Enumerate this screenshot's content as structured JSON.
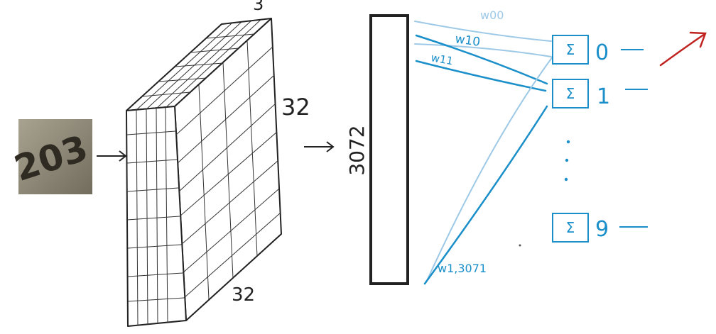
{
  "input_image": {
    "text": "203"
  },
  "tensor": {
    "top_label": "3",
    "height_label": "32",
    "width_label": "32"
  },
  "vector": {
    "size_label": "3072"
  },
  "weights": {
    "w00": "w00",
    "w10": "w10",
    "w11": "w11",
    "w13071": "w1,3071"
  },
  "outputs": {
    "sum_symbol": "Σ",
    "items": [
      {
        "label": "0"
      },
      {
        "label": "1"
      },
      {
        "label": "9"
      }
    ],
    "ellipsis": "⋮"
  },
  "colors": {
    "ink": "#222222",
    "blue": "#1a8fc9",
    "light_blue": "#9ec9e6",
    "red": "#c0221f"
  }
}
